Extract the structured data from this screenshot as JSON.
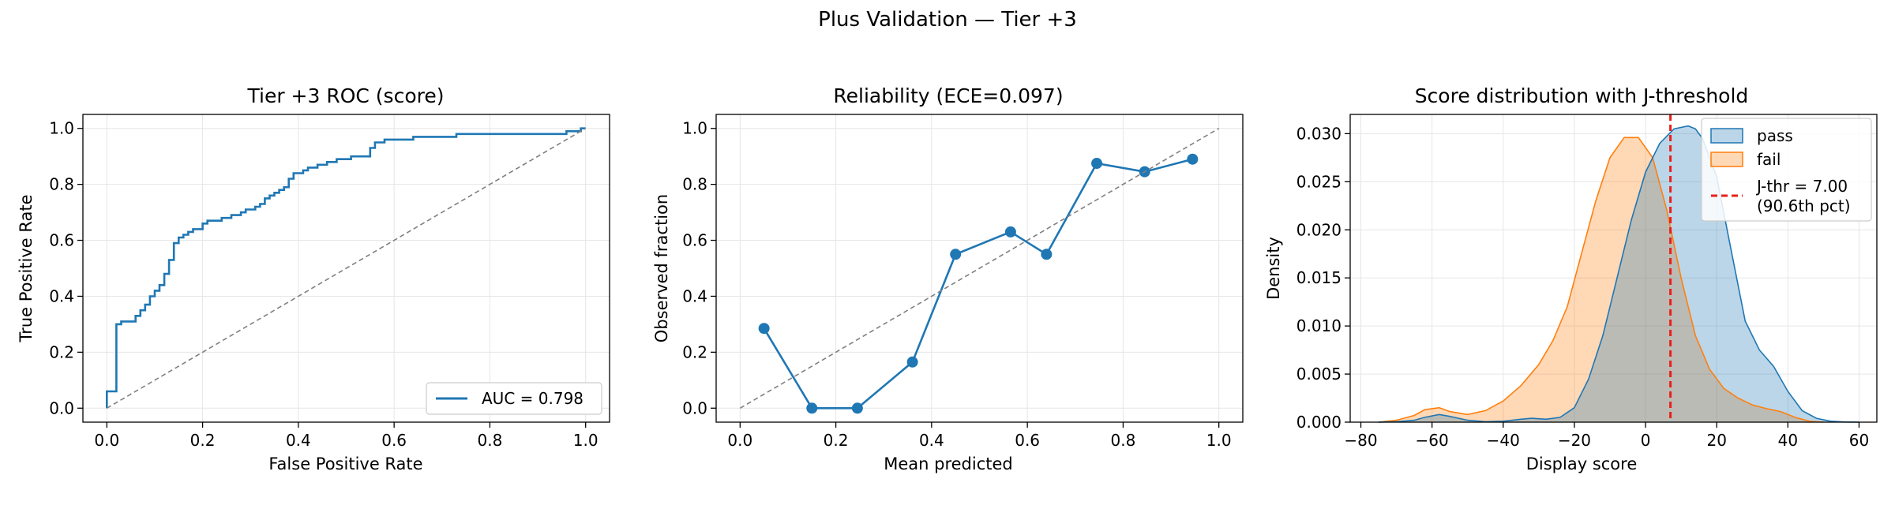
{
  "title": "Plus Validation — Tier +3",
  "colors": {
    "blue": "#1f77b4",
    "orange": "#ff7f0e",
    "red": "#d62728",
    "diagonal": "#808080",
    "grid": "#e6e6e6"
  },
  "chart_data": [
    {
      "type": "line",
      "title": "Tier +3 ROC (score)",
      "xlabel": "False Positive Rate",
      "ylabel": "True Positive Rate",
      "xlim": [
        -0.05,
        1.05
      ],
      "ylim": [
        -0.05,
        1.05
      ],
      "xticks": [
        "0.0",
        "0.2",
        "0.4",
        "0.6",
        "0.8",
        "1.0"
      ],
      "yticks": [
        "0.0",
        "0.2",
        "0.4",
        "0.6",
        "0.8",
        "1.0"
      ],
      "grid": true,
      "legend_position": "lower-right",
      "series": [
        {
          "name": "AUC = 0.798",
          "kind": "step",
          "x": [
            0.0,
            0.0,
            0.02,
            0.02,
            0.03,
            0.03,
            0.06,
            0.06,
            0.07,
            0.07,
            0.08,
            0.08,
            0.09,
            0.09,
            0.1,
            0.1,
            0.11,
            0.11,
            0.12,
            0.12,
            0.13,
            0.13,
            0.14,
            0.14,
            0.15,
            0.15,
            0.16,
            0.16,
            0.17,
            0.17,
            0.18,
            0.18,
            0.2,
            0.2,
            0.21,
            0.21,
            0.24,
            0.24,
            0.26,
            0.26,
            0.28,
            0.28,
            0.29,
            0.29,
            0.3,
            0.3,
            0.31,
            0.31,
            0.32,
            0.32,
            0.33,
            0.33,
            0.34,
            0.34,
            0.35,
            0.35,
            0.36,
            0.36,
            0.37,
            0.37,
            0.38,
            0.38,
            0.39,
            0.39,
            0.4,
            0.4,
            0.41,
            0.41,
            0.42,
            0.42,
            0.44,
            0.44,
            0.46,
            0.46,
            0.48,
            0.48,
            0.51,
            0.51,
            0.55,
            0.55,
            0.56,
            0.56,
            0.58,
            0.58,
            0.64,
            0.64,
            0.71,
            0.71,
            0.73,
            0.73,
            0.77,
            0.77,
            0.96,
            0.96,
            0.99,
            0.99,
            1.0
          ],
          "y": [
            0.0,
            0.06,
            0.06,
            0.3,
            0.3,
            0.31,
            0.31,
            0.33,
            0.33,
            0.35,
            0.35,
            0.37,
            0.37,
            0.4,
            0.4,
            0.42,
            0.42,
            0.44,
            0.44,
            0.48,
            0.48,
            0.53,
            0.53,
            0.59,
            0.59,
            0.61,
            0.61,
            0.62,
            0.62,
            0.63,
            0.63,
            0.64,
            0.64,
            0.66,
            0.66,
            0.67,
            0.67,
            0.68,
            0.68,
            0.69,
            0.69,
            0.7,
            0.7,
            0.71,
            0.71,
            0.71,
            0.71,
            0.72,
            0.72,
            0.73,
            0.73,
            0.75,
            0.75,
            0.76,
            0.76,
            0.77,
            0.77,
            0.78,
            0.78,
            0.79,
            0.79,
            0.82,
            0.82,
            0.84,
            0.84,
            0.84,
            0.84,
            0.85,
            0.85,
            0.86,
            0.86,
            0.87,
            0.87,
            0.88,
            0.88,
            0.89,
            0.89,
            0.9,
            0.9,
            0.93,
            0.93,
            0.95,
            0.95,
            0.96,
            0.96,
            0.97,
            0.97,
            0.97,
            0.97,
            0.98,
            0.98,
            0.98,
            0.98,
            0.99,
            0.99,
            1.0,
            1.0
          ]
        },
        {
          "name": "",
          "kind": "diagonal",
          "x": [
            0,
            1
          ],
          "y": [
            0,
            1
          ]
        }
      ]
    },
    {
      "type": "line",
      "title": "Reliability (ECE=0.097)",
      "xlabel": "Mean predicted",
      "ylabel": "Observed fraction",
      "xlim": [
        -0.05,
        1.05
      ],
      "ylim": [
        -0.05,
        1.05
      ],
      "xticks": [
        "0.0",
        "0.2",
        "0.4",
        "0.6",
        "0.8",
        "1.0"
      ],
      "yticks": [
        "0.0",
        "0.2",
        "0.4",
        "0.6",
        "0.8",
        "1.0"
      ],
      "grid": true,
      "series": [
        {
          "name": "",
          "kind": "markers",
          "x": [
            0.05,
            0.15,
            0.245,
            0.36,
            0.45,
            0.565,
            0.64,
            0.745,
            0.845,
            0.945
          ],
          "y": [
            0.285,
            0.0,
            0.0,
            0.165,
            0.55,
            0.63,
            0.55,
            0.875,
            0.845,
            0.89
          ]
        },
        {
          "name": "",
          "kind": "diagonal",
          "x": [
            0,
            1
          ],
          "y": [
            0,
            1
          ]
        }
      ]
    },
    {
      "type": "area",
      "title": "Score distribution with J-threshold",
      "xlabel": "Display score",
      "ylabel": "Density",
      "xlim": [
        -83,
        65
      ],
      "ylim": [
        0,
        0.032
      ],
      "xticks": [
        "−80",
        "−60",
        "−40",
        "−20",
        "0",
        "20",
        "40",
        "60"
      ],
      "yticks": [
        "0.000",
        "0.005",
        "0.010",
        "0.015",
        "0.020",
        "0.025",
        "0.030"
      ],
      "grid": true,
      "legend_position": "upper-right",
      "series": [
        {
          "name": "pass",
          "x": [
            -75,
            -70,
            -65,
            -62,
            -58,
            -55,
            -50,
            -45,
            -40,
            -35,
            -32,
            -28,
            -24,
            -20,
            -16,
            -12,
            -8,
            -4,
            0,
            4,
            8,
            12,
            14,
            16,
            20,
            24,
            28,
            32,
            36,
            40,
            44,
            48,
            52,
            56,
            60
          ],
          "y": [
            0.0,
            5e-05,
            0.0002,
            0.0005,
            0.0008,
            0.0006,
            0.0002,
            5e-05,
            0.0001,
            0.0003,
            0.0004,
            0.0003,
            0.0005,
            0.0015,
            0.0045,
            0.009,
            0.015,
            0.021,
            0.026,
            0.029,
            0.0305,
            0.0308,
            0.0305,
            0.0295,
            0.0255,
            0.018,
            0.0105,
            0.0075,
            0.0058,
            0.0032,
            0.0012,
            0.0004,
            0.0001,
            2e-05,
            0.0
          ]
        },
        {
          "name": "fail",
          "x": [
            -75,
            -70,
            -65,
            -62,
            -58,
            -55,
            -50,
            -45,
            -40,
            -35,
            -30,
            -26,
            -22,
            -18,
            -14,
            -10,
            -6,
            -2,
            2,
            6,
            10,
            14,
            18,
            22,
            26,
            30,
            34,
            38,
            42,
            46,
            50
          ],
          "y": [
            0.0,
            0.0002,
            0.0007,
            0.0013,
            0.0015,
            0.0011,
            0.0008,
            0.0012,
            0.0022,
            0.0038,
            0.006,
            0.0085,
            0.012,
            0.0175,
            0.023,
            0.0275,
            0.0296,
            0.0296,
            0.0275,
            0.022,
            0.015,
            0.009,
            0.0055,
            0.0035,
            0.0025,
            0.0018,
            0.0014,
            0.0011,
            0.0005,
            0.0001,
            0.0
          ]
        }
      ],
      "threshold": {
        "x": 7.0,
        "label_line1": "J-thr = 7.00",
        "label_line2": "(90.6th pct)"
      }
    }
  ]
}
